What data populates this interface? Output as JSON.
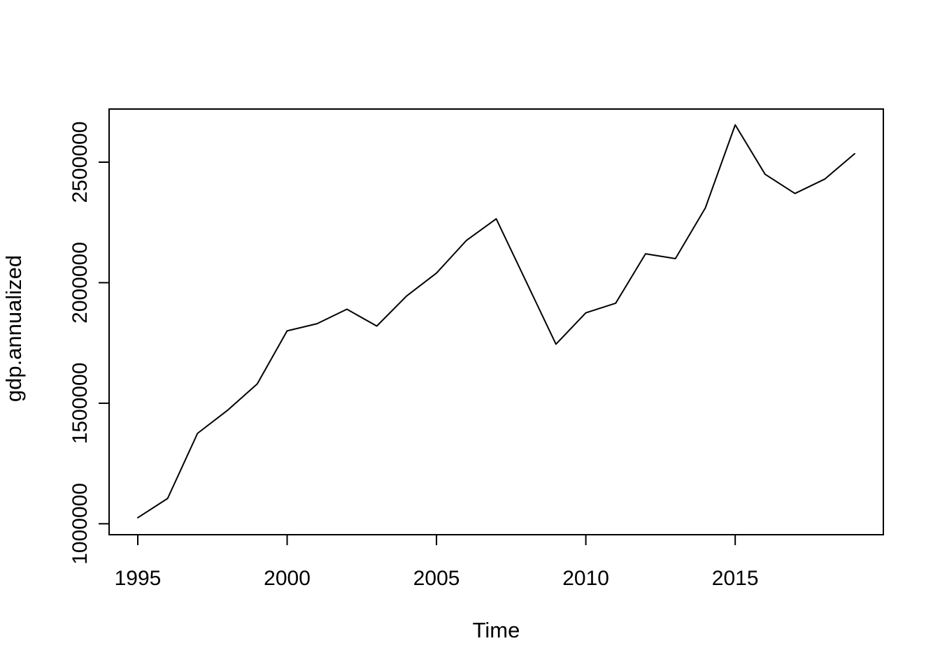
{
  "page": {
    "background_color": "#ffffff"
  },
  "chart_data": {
    "type": "line",
    "title": "",
    "xlabel": "Time",
    "ylabel": "gdp.annualized",
    "line_color": "#000000",
    "axis_color": "#000000",
    "grid": false,
    "box": true,
    "legend": "none",
    "xlim": [
      1994.04,
      2019.96
    ],
    "ylim": [
      954600,
      2720400
    ],
    "xticks": {
      "values": [
        1995,
        2000,
        2005,
        2010,
        2015
      ],
      "labels": [
        "1995",
        "2000",
        "2005",
        "2010",
        "2015"
      ]
    },
    "yticks": {
      "values": [
        1000000,
        1500000,
        2000000,
        2500000
      ],
      "labels": [
        "1000000",
        "1500000",
        "2000000",
        "2500000"
      ]
    },
    "series": [
      {
        "name": "gdp.annualized",
        "color": "#000000",
        "x": [
          1995,
          1996,
          1997,
          1998,
          1999,
          2000,
          2001,
          2002,
          2003,
          2004,
          2005,
          2006,
          2007,
          2008,
          2009,
          2010,
          2011,
          2012,
          2013,
          2014,
          2015,
          2016,
          2017,
          2018,
          2019
        ],
        "values": [
          1025000,
          1105000,
          1375000,
          1470000,
          1580000,
          1800000,
          1830000,
          1890000,
          1820000,
          1945000,
          2040000,
          2175000,
          2265000,
          2005000,
          1745000,
          1875000,
          1915000,
          2120000,
          2100000,
          2310000,
          2655000,
          2450000,
          2370000,
          2430000,
          2535000
        ]
      }
    ]
  }
}
